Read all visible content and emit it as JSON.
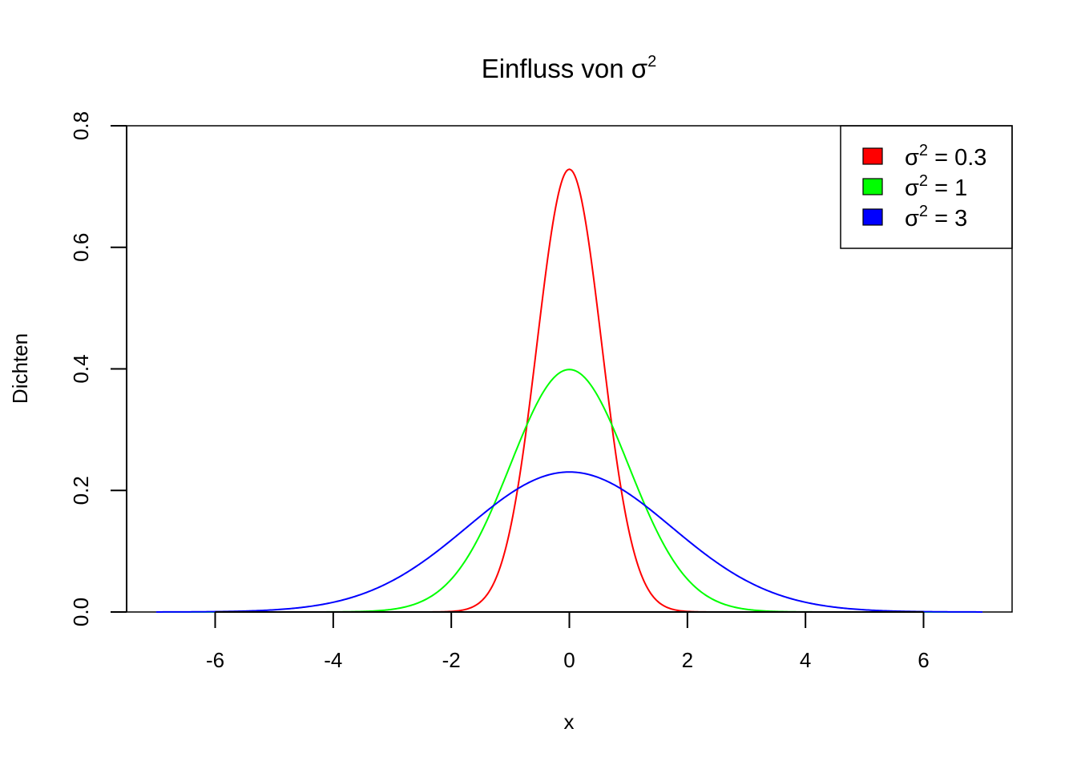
{
  "chart_data": {
    "type": "line",
    "title": {
      "text": "Einfluss von σ",
      "sup": "2"
    },
    "xlabel": "x",
    "ylabel": "Dichten",
    "xlim": [
      -7.5,
      7.5
    ],
    "ylim": [
      0,
      0.8
    ],
    "x_ticks": [
      -6,
      -4,
      -2,
      0,
      2,
      4,
      6
    ],
    "x_tick_labels": [
      "-6",
      "-4",
      "-2",
      "0",
      "2",
      "4",
      "6"
    ],
    "y_ticks": [
      0.0,
      0.2,
      0.4,
      0.6,
      0.8
    ],
    "y_tick_labels": [
      "0.0",
      "0.2",
      "0.4",
      "0.6",
      "0.8"
    ],
    "x_range": [
      -7,
      7
    ],
    "grid": false,
    "legend_position": "top-right",
    "series": [
      {
        "variance": 0.3,
        "color": "#ff0000",
        "label": "σ",
        "sup": "2",
        "suffix": " = 0.3",
        "peak": 0.728
      },
      {
        "variance": 1,
        "color": "#00ff00",
        "label": "σ",
        "sup": "2",
        "suffix": " = 1",
        "peak": 0.399
      },
      {
        "variance": 3,
        "color": "#0000ff",
        "label": "σ",
        "sup": "2",
        "suffix": " = 3",
        "peak": 0.23
      }
    ]
  }
}
